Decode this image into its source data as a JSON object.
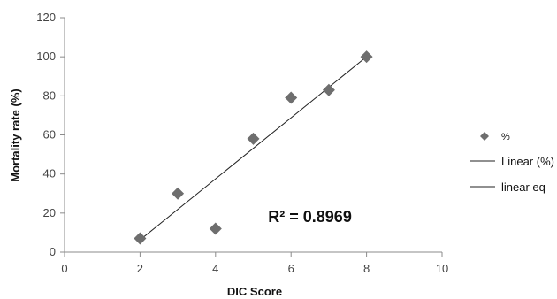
{
  "chart_data": {
    "type": "scatter",
    "title": "",
    "xlabel": "DIC Score",
    "ylabel": "Mortality rate (%)",
    "xlim": [
      0,
      10
    ],
    "ylim": [
      0,
      120
    ],
    "x_ticks": [
      0,
      2,
      4,
      6,
      8,
      10
    ],
    "y_ticks": [
      0,
      20,
      40,
      60,
      80,
      100,
      120
    ],
    "grid": false,
    "legend_position": "right",
    "series": [
      {
        "name": "%",
        "kind": "points",
        "x": [
          2,
          3,
          4,
          5,
          6,
          7,
          8
        ],
        "y": [
          7,
          30,
          12,
          58,
          79,
          83,
          100
        ],
        "color": "#6e6e6e",
        "marker": "diamond"
      },
      {
        "name": "Linear (%)",
        "kind": "line",
        "x": [
          2,
          8
        ],
        "y": [
          6.25,
          100
        ],
        "color": "#222222"
      },
      {
        "name": "linear eq",
        "kind": "line",
        "x": [],
        "y": [],
        "color": "#222222"
      }
    ],
    "annotations": [
      {
        "text": "R² = 0.8969",
        "x": 6.5,
        "y": 15.5
      }
    ]
  }
}
